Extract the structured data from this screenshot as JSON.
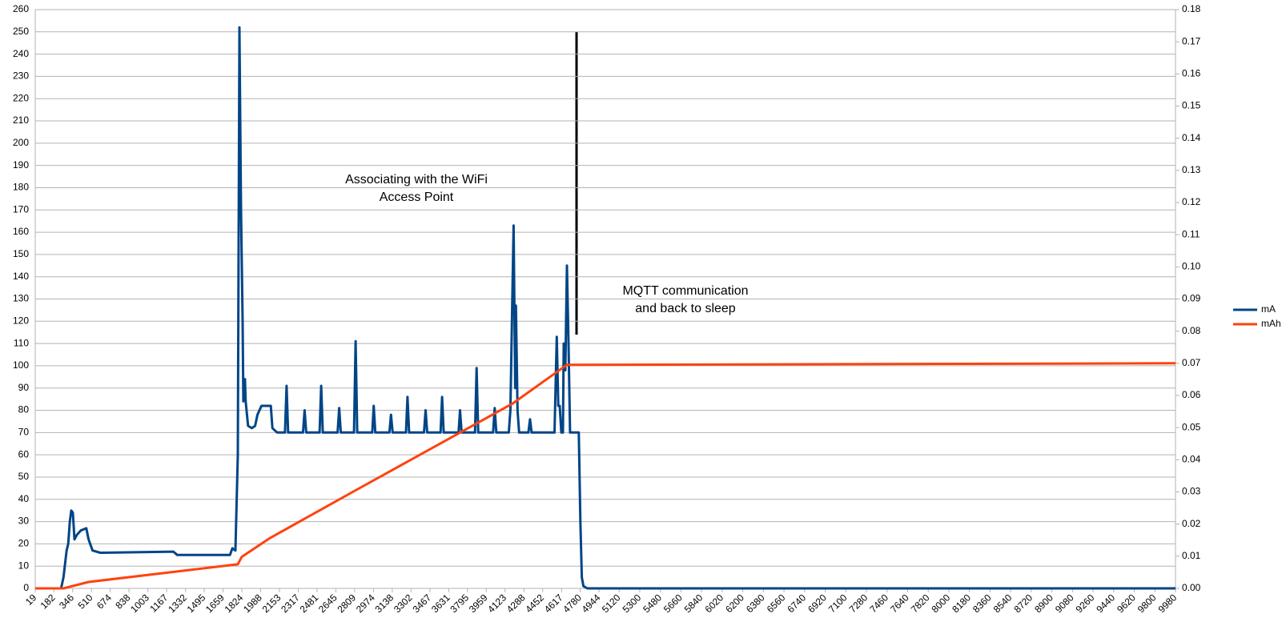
{
  "chart_data": {
    "type": "line",
    "xticks": [
      19,
      182,
      346,
      510,
      674,
      838,
      1003,
      1167,
      1332,
      1495,
      1659,
      1824,
      1988,
      2153,
      2317,
      2481,
      2645,
      2809,
      2974,
      3138,
      3302,
      3467,
      3631,
      3795,
      3959,
      4123,
      4288,
      4452,
      4617,
      4780,
      4944,
      5120,
      5300,
      5480,
      5660,
      5840,
      6020,
      6200,
      6380,
      6560,
      6740,
      6920,
      7100,
      7280,
      7460,
      7640,
      7820,
      8000,
      8180,
      8360,
      8540,
      8720,
      8900,
      9080,
      9260,
      9440,
      9620,
      9800,
      9980
    ],
    "xlim": [
      19,
      9980
    ],
    "ylim": [
      0,
      260
    ],
    "yticks": [
      0,
      10,
      20,
      30,
      40,
      50,
      60,
      70,
      80,
      90,
      100,
      110,
      120,
      130,
      140,
      150,
      160,
      170,
      180,
      190,
      200,
      210,
      220,
      230,
      240,
      250,
      260
    ],
    "y2lim": [
      0,
      0.18
    ],
    "y2ticks": [
      {
        "value": 0,
        "label": "0.00"
      },
      0.01,
      0.02,
      0.03,
      0.04,
      0.05,
      0.06,
      0.07,
      0.08,
      0.09,
      {
        "value": 0.1,
        "label": "0.10"
      },
      0.11,
      0.12,
      0.13,
      0.14,
      0.15,
      0.16,
      0.17,
      0.18
    ],
    "grid": true,
    "legend": "right",
    "annotations": [
      {
        "lines": [
          "Associating with the WiFi",
          "Access Point"
        ]
      },
      {
        "lines": [
          "MQTT communication",
          "and back to sleep"
        ]
      }
    ],
    "series": [
      {
        "name": "mA",
        "color": "#004586",
        "x": [
          19,
          245,
          266,
          293,
          307,
          321,
          334,
          348,
          362,
          382,
          417,
          465,
          485,
          520,
          588,
          1226,
          1260,
          1720,
          1741,
          1768,
          1789,
          1803,
          1817,
          1831,
          1837,
          1851,
          1857,
          1878,
          1912,
          1940,
          1960,
          1995,
          2077,
          2091,
          2132,
          2201,
          2215,
          2228,
          2358,
          2372,
          2386,
          2503,
          2517,
          2531,
          2660,
          2674,
          2688,
          2804,
          2818,
          2832,
          2963,
          2976,
          2990,
          3113,
          3127,
          3141,
          3258,
          3271,
          3285,
          3415,
          3429,
          3443,
          3560,
          3573,
          3587,
          3717,
          3730,
          3744,
          3861,
          3875,
          3889,
          4019,
          4033,
          4047,
          4156,
          4170,
          4198,
          4212,
          4218,
          4232,
          4246,
          4327,
          4341,
          4355,
          4555,
          4575,
          4588,
          4601,
          4615,
          4629,
          4636,
          4650,
          4664,
          4678,
          4691,
          4767,
          4781,
          4794,
          4808,
          4842,
          9980
        ],
        "values": [
          0,
          0,
          5,
          17,
          20,
          30,
          35,
          34,
          22,
          24,
          26,
          27,
          22,
          17,
          16,
          16.5,
          15,
          15,
          18,
          17,
          60,
          252,
          170,
          120,
          84,
          94,
          84,
          73,
          72,
          73,
          78,
          82,
          82,
          72,
          70,
          70,
          91,
          70,
          70,
          80,
          70,
          70,
          91,
          70,
          70,
          81,
          70,
          70,
          111,
          70,
          70,
          82,
          70,
          70,
          78,
          70,
          70,
          86,
          70,
          70,
          80,
          70,
          70,
          86,
          70,
          70,
          80,
          70,
          70,
          99,
          70,
          70,
          81,
          70,
          70,
          80,
          163,
          90,
          127,
          80,
          70,
          70,
          76,
          70,
          70,
          113,
          82,
          82,
          70,
          70,
          110,
          98,
          145,
          110,
          70,
          70,
          30,
          5,
          1,
          0,
          0
        ]
      },
      {
        "name": "mAh",
        "color": "#ff420e",
        "axis": "y2",
        "x": [
          19,
          266,
          485,
          1789,
          1823,
          2063,
          2818,
          4190,
          4662,
          9980
        ],
        "values": [
          0,
          0,
          0.002,
          0.0075,
          0.0098,
          0.0155,
          0.0305,
          0.0575,
          0.0695,
          0.07
        ]
      }
    ]
  }
}
